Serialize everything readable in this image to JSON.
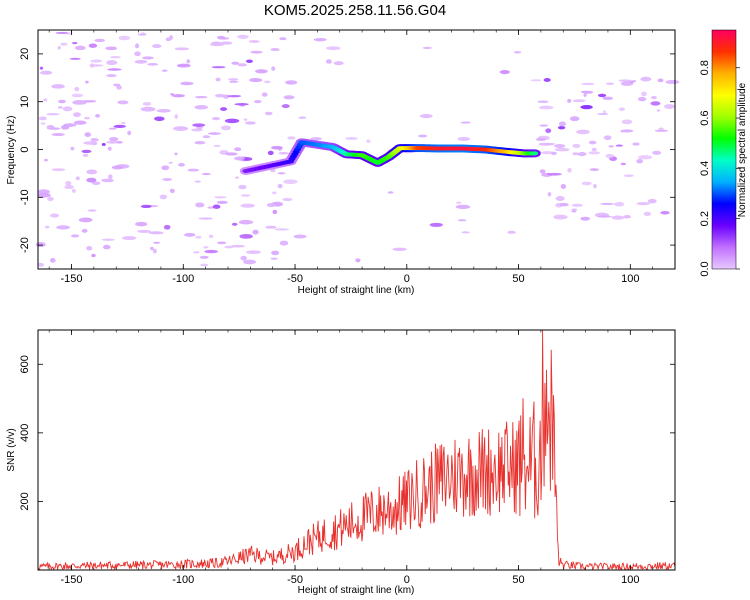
{
  "chart_data": [
    {
      "type": "heatmap",
      "title": "KOM5.2025.258.11.56.G04",
      "xlabel": "Height of straight line (km)",
      "ylabel": "Frequency (Hz)",
      "xlim": [
        -165,
        120
      ],
      "ylim": [
        -25,
        25
      ],
      "xticks": [
        -150,
        -100,
        -50,
        0,
        50,
        100
      ],
      "yticks": [
        -20,
        -10,
        0,
        10,
        20
      ],
      "grid": false,
      "colorbar": {
        "label": "Normalized spectral amplitude",
        "range": [
          0,
          0.95
        ],
        "ticks": [
          0.0,
          0.2,
          0.4,
          0.6,
          0.8
        ],
        "colors": [
          "#e8c8ff",
          "#c070ff",
          "#6a00ff",
          "#0000ff",
          "#00b0ff",
          "#00ffc8",
          "#00ff00",
          "#a0ff00",
          "#ffff00",
          "#ffb000",
          "#ff3000",
          "#ff0060"
        ]
      },
      "ridge": {
        "description": "strong signal ridge along frequency ~0 Hz",
        "points": [
          {
            "x": -72,
            "f": -4.5,
            "a": 0.15
          },
          {
            "x": -62,
            "f": -3.5,
            "a": 0.18
          },
          {
            "x": -52,
            "f": -2.5,
            "a": 0.22
          },
          {
            "x": -47,
            "f": 1.5,
            "a": 0.3
          },
          {
            "x": -40,
            "f": 1.0,
            "a": 0.32
          },
          {
            "x": -33,
            "f": 0.5,
            "a": 0.35
          },
          {
            "x": -27,
            "f": -1.0,
            "a": 0.45
          },
          {
            "x": -20,
            "f": -1.2,
            "a": 0.55
          },
          {
            "x": -13,
            "f": -2.8,
            "a": 0.5
          },
          {
            "x": -8,
            "f": -1.5,
            "a": 0.55
          },
          {
            "x": -3,
            "f": 0.3,
            "a": 0.65
          },
          {
            "x": 5,
            "f": 0.3,
            "a": 0.85
          },
          {
            "x": 15,
            "f": 0.2,
            "a": 0.9
          },
          {
            "x": 25,
            "f": 0.2,
            "a": 0.92
          },
          {
            "x": 35,
            "f": 0.0,
            "a": 0.88
          },
          {
            "x": 45,
            "f": -0.5,
            "a": 0.75
          },
          {
            "x": 52,
            "f": -0.8,
            "a": 0.6
          },
          {
            "x": 58,
            "f": -0.8,
            "a": 0.45
          }
        ]
      }
    },
    {
      "type": "line",
      "xlabel": "Height of straight line (km)",
      "ylabel": "SNR (v/v)",
      "xlim": [
        -165,
        120
      ],
      "ylim": [
        0,
        700
      ],
      "xticks": [
        -150,
        -100,
        -50,
        0,
        50,
        100
      ],
      "yticks": [
        200,
        400,
        600
      ],
      "series": [
        {
          "name": "SNR",
          "color": "#e8302c",
          "x": [
            -165,
            -150,
            -130,
            -110,
            -95,
            -85,
            -80,
            -75,
            -70,
            -65,
            -60,
            -55,
            -50,
            -45,
            -40,
            -35,
            -30,
            -25,
            -20,
            -15,
            -10,
            -5,
            0,
            5,
            10,
            15,
            20,
            25,
            30,
            35,
            40,
            45,
            50,
            52,
            55,
            58,
            60,
            62,
            64,
            65,
            66,
            68,
            70,
            75,
            80,
            90,
            100,
            110,
            120
          ],
          "values": [
            10,
            12,
            14,
            15,
            18,
            20,
            25,
            35,
            45,
            40,
            35,
            45,
            55,
            80,
            95,
            110,
            120,
            135,
            150,
            165,
            175,
            180,
            200,
            225,
            240,
            260,
            275,
            280,
            285,
            290,
            295,
            300,
            305,
            330,
            300,
            320,
            350,
            600,
            420,
            680,
            300,
            25,
            15,
            12,
            10,
            10,
            10,
            12,
            12
          ]
        }
      ]
    }
  ]
}
